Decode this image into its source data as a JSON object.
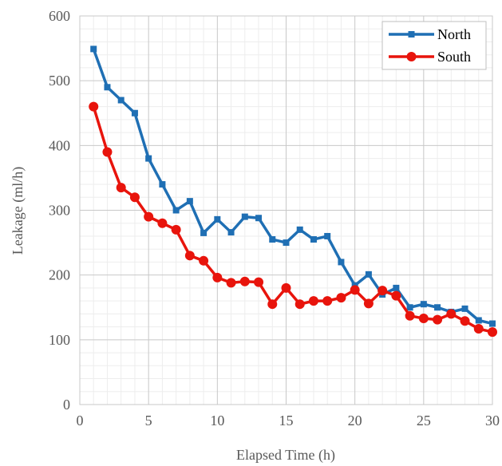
{
  "chart_data": {
    "type": "line",
    "title": "",
    "xlabel": "Elapsed Time (h)",
    "ylabel": "Leakage (ml/h)",
    "xlim": [
      0,
      30
    ],
    "ylim": [
      0,
      600
    ],
    "x_major_ticks": [
      0,
      5,
      10,
      15,
      20,
      25,
      30
    ],
    "y_major_ticks": [
      0,
      100,
      200,
      300,
      400,
      500,
      600
    ],
    "x_minor_step": 1,
    "y_minor_step": 20,
    "grid": true,
    "legend_position": "top-right",
    "x": [
      1,
      2,
      3,
      4,
      5,
      6,
      7,
      8,
      9,
      10,
      11,
      12,
      13,
      14,
      15,
      16,
      17,
      18,
      19,
      20,
      21,
      22,
      23,
      24,
      25,
      26,
      27,
      28,
      29,
      30
    ],
    "series": [
      {
        "name": "North",
        "color": "#1f6fb4",
        "marker": "square",
        "values": [
          549,
          490,
          470,
          450,
          380,
          340,
          300,
          314,
          265,
          286,
          266,
          290,
          288,
          255,
          250,
          270,
          255,
          260,
          220,
          184,
          201,
          170,
          180,
          150,
          155,
          150,
          143,
          148,
          130,
          125
        ]
      },
      {
        "name": "South",
        "color": "#e8140c",
        "marker": "circle",
        "values": [
          460,
          390,
          335,
          320,
          290,
          280,
          270,
          230,
          222,
          196,
          188,
          190,
          189,
          155,
          180,
          155,
          160,
          160,
          165,
          177,
          156,
          176,
          168,
          137,
          133,
          131,
          140,
          129,
          117,
          112
        ]
      }
    ]
  }
}
